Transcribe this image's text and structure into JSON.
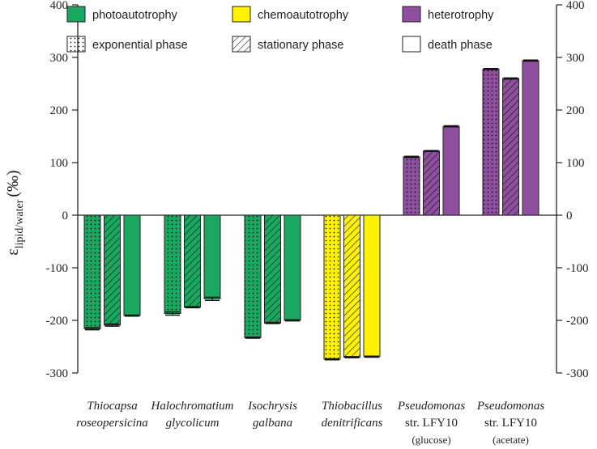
{
  "chart_data": {
    "type": "bar",
    "title": "",
    "ylabel": "ε lipid/water (‰)",
    "ylabel_symbol": "ε",
    "ylabel_sub": "lipid/water",
    "ylabel_unit": "(‰)",
    "ylim": [
      -300,
      400
    ],
    "yticks": [
      -300,
      -200,
      -100,
      0,
      100,
      200,
      300,
      400
    ],
    "ytick_labels": [
      "-300",
      "-200",
      "-100",
      "0",
      "100",
      "200",
      "300",
      "400"
    ],
    "categories": [
      {
        "line1": "Thiocapsa",
        "line2": "roseopersicina",
        "line3": "",
        "italic1": true,
        "italic2": true
      },
      {
        "line1": "Halochromatium",
        "line2": "glycolicum",
        "line3": "",
        "italic1": true,
        "italic2": true
      },
      {
        "line1": "Isochrysis",
        "line2": "galbana",
        "line3": "",
        "italic1": true,
        "italic2": true
      },
      {
        "line1": "Thiobacillus",
        "line2": "denitrificans",
        "line3": "",
        "italic1": true,
        "italic2": true
      },
      {
        "line1": "Pseudomonas",
        "line2": "str. LFY10",
        "line3": "(glucose)",
        "italic1": true,
        "italic2": false
      },
      {
        "line1": "Pseudomonas",
        "line2": "str. LFY10",
        "line3": "(acetate)",
        "italic1": true,
        "italic2": false
      }
    ],
    "metabolism": [
      "photoautotrophy",
      "photoautotrophy",
      "photoautotrophy",
      "chemoautotrophy",
      "heterotrophy",
      "heterotrophy"
    ],
    "series": [
      {
        "name": "exponential phase",
        "pattern": "dots",
        "values": [
          -216,
          -187,
          -233,
          -274,
          111,
          278
        ],
        "errors": [
          2,
          3,
          1,
          1,
          1,
          1
        ]
      },
      {
        "name": "stationary phase",
        "pattern": "hatch",
        "values": [
          -209,
          -175,
          -205,
          -270,
          122,
          260
        ],
        "errors": [
          2,
          1,
          1,
          1,
          1,
          1
        ]
      },
      {
        "name": "death phase",
        "pattern": "none",
        "values": [
          -191,
          -159,
          -200,
          -269,
          169,
          294
        ],
        "errors": [
          1,
          3,
          1,
          1,
          1,
          1
        ]
      }
    ],
    "legend": {
      "placement": "top",
      "metabolism_entries": [
        {
          "label": "photoautotrophy",
          "color": "#1aa860"
        },
        {
          "label": "chemoautotrophy",
          "color": "#fff200"
        },
        {
          "label": "heterotrophy",
          "color": "#8e4f9e"
        }
      ],
      "phase_entries": [
        {
          "label": "exponential phase",
          "pattern": "dots"
        },
        {
          "label": "stationary phase",
          "pattern": "hatch"
        },
        {
          "label": "death phase",
          "pattern": "none"
        }
      ]
    },
    "colors": {
      "photoautotrophy": "#1aa860",
      "chemoautotrophy": "#fff200",
      "heterotrophy": "#8e4f9e",
      "axis": "#222222"
    }
  }
}
